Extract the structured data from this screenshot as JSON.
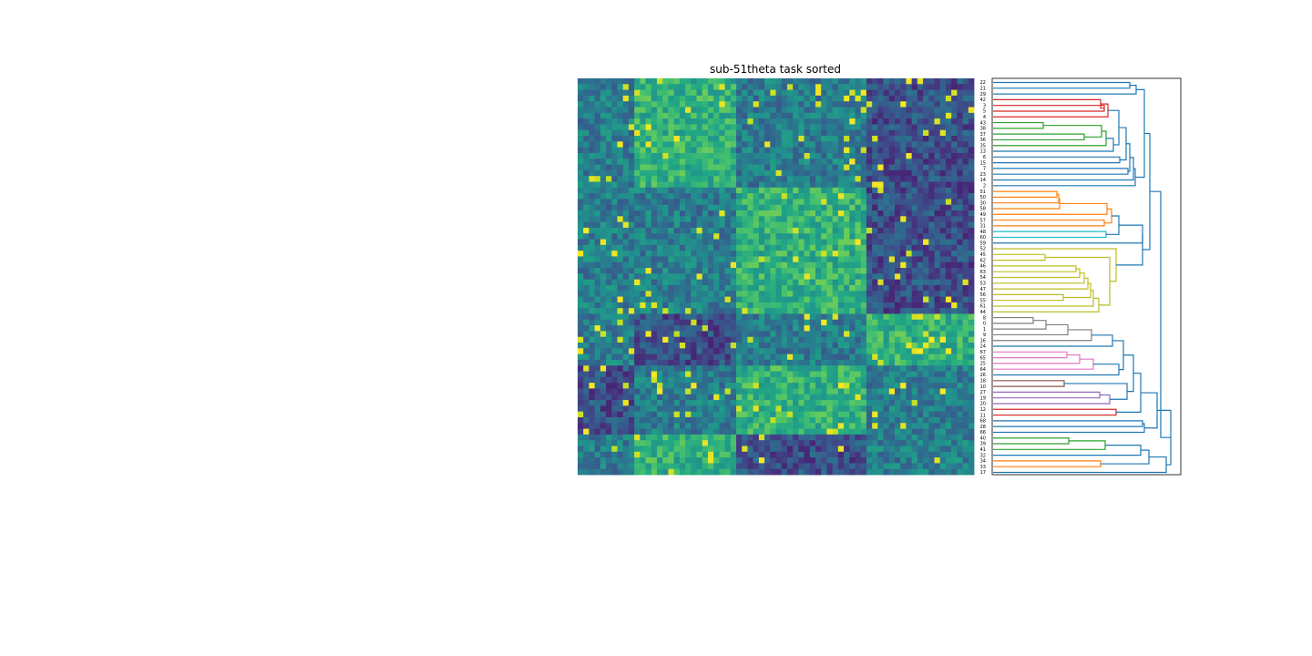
{
  "chart_data": [
    {
      "type": "heatmap",
      "title": "sub-51theta task sorted",
      "colormap": "viridis",
      "rows": 69,
      "cols": 70,
      "colormap_stops": [
        "#440154",
        "#482475",
        "#414487",
        "#355f8d",
        "#2a788e",
        "#21918c",
        "#22a884",
        "#44bf70",
        "#7ad151",
        "#bddf26",
        "#fde725"
      ],
      "note_values": "cell intensities rendered procedurally in viridis scale"
    },
    {
      "type": "dendrogram",
      "orientation": "left",
      "leaf_labels": [
        "22",
        "21",
        "29",
        "42",
        "3",
        "5",
        "4",
        "43",
        "38",
        "37",
        "36",
        "35",
        "13",
        "6",
        "15",
        "7",
        "23",
        "14",
        "2",
        "51",
        "50",
        "30",
        "58",
        "49",
        "57",
        "31",
        "48",
        "60",
        "59",
        "52",
        "45",
        "62",
        "46",
        "63",
        "54",
        "53",
        "47",
        "56",
        "55",
        "61",
        "44",
        "8",
        "0",
        "1",
        "9",
        "16",
        "24",
        "67",
        "65",
        "25",
        "64",
        "26",
        "18",
        "10",
        "27",
        "19",
        "20",
        "12",
        "11",
        "68",
        "28",
        "66",
        "40",
        "39",
        "41",
        "32",
        "34",
        "33",
        "17"
      ],
      "cluster_colors": [
        "#1f77b4",
        "#d62728",
        "#2ca02c",
        "#ff7f0e",
        "#17becf",
        "#bcbd22",
        "#7f7f7f",
        "#e377c2",
        "#8c564b",
        "#9467bd"
      ]
    }
  ]
}
